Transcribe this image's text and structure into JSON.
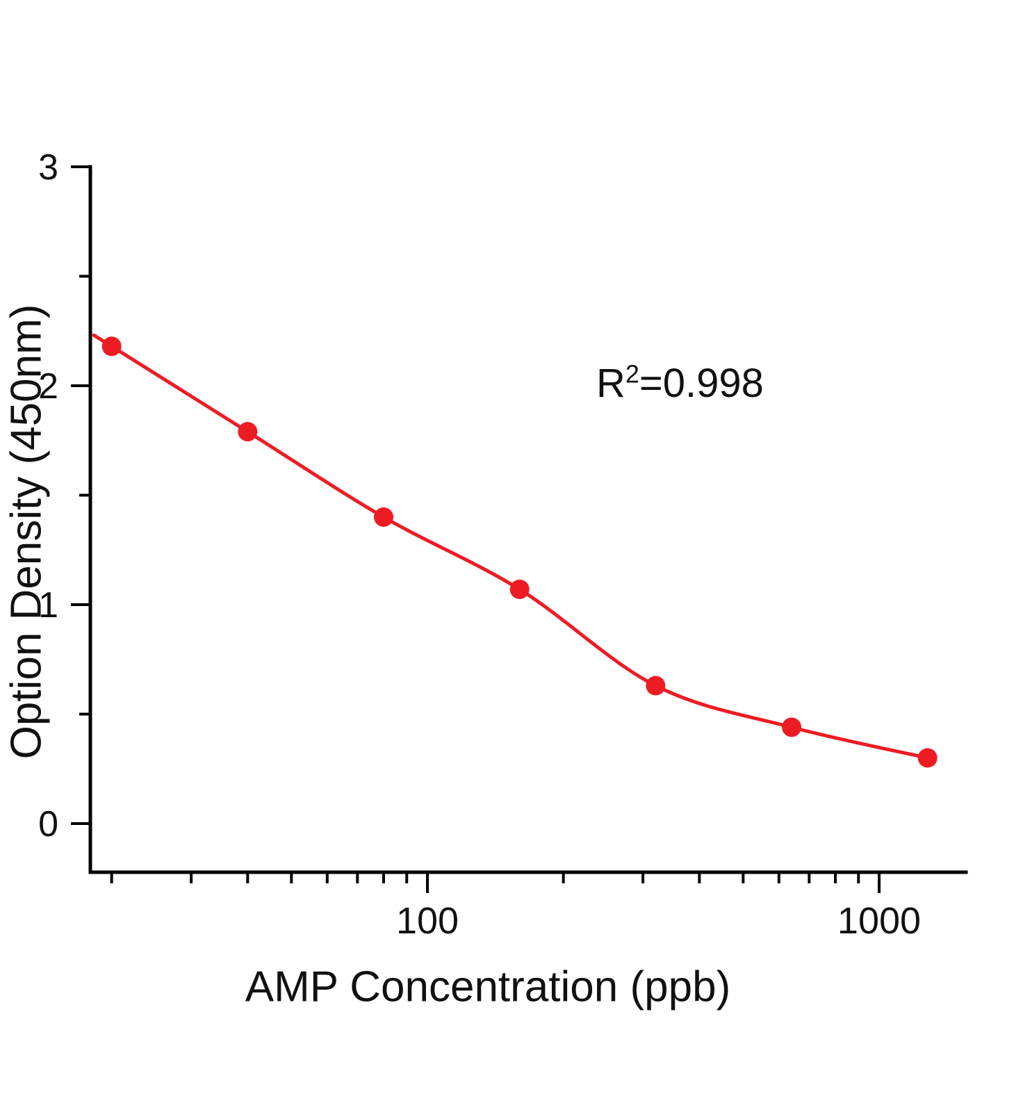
{
  "chart_data": {
    "type": "scatter",
    "title": "",
    "xlabel": "AMP Concentration (ppb)",
    "ylabel": "Option Density (450nm)",
    "x": [
      20,
      40,
      80,
      160,
      320,
      640,
      1280
    ],
    "y": [
      2.18,
      1.79,
      1.4,
      1.07,
      0.63,
      0.44,
      0.3
    ],
    "curve": "decreasing 4PL sigmoidal fit through points",
    "annotation": {
      "base": "R",
      "sup": "2",
      "rest": "=0.998"
    },
    "xscale": "log",
    "xlim": [
      18,
      1550
    ],
    "ylim": [
      0,
      3
    ],
    "yticks": [
      0,
      1,
      2,
      3
    ],
    "yminor": [
      0.5,
      1.5,
      2.5
    ],
    "xticks_major": [
      100,
      1000
    ],
    "grid": false,
    "legend": null,
    "point_color": "#ed1c24",
    "line_color": "#ed1c24",
    "axis_color": "#000000"
  }
}
